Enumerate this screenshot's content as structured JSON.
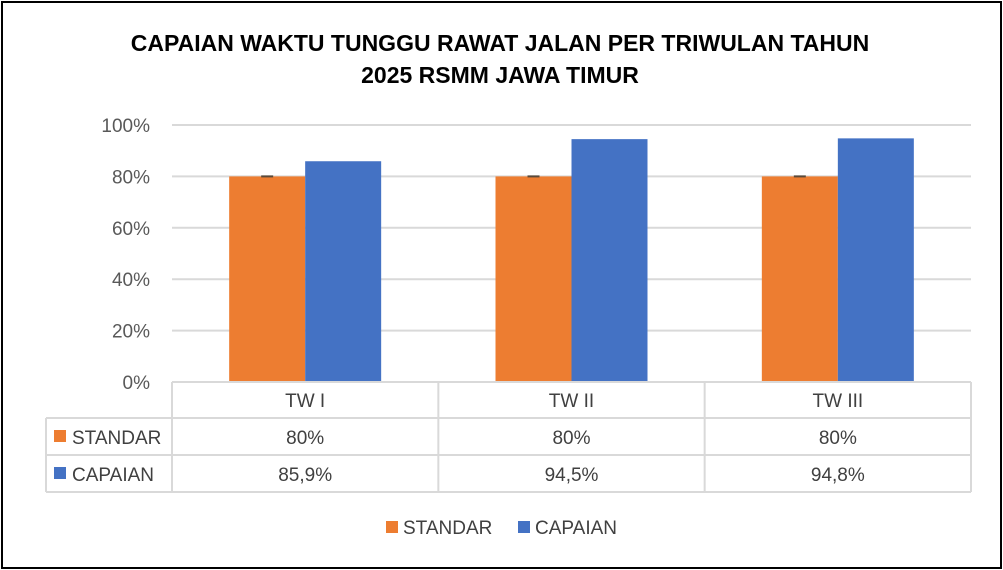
{
  "chart_data": {
    "type": "bar",
    "title": "CAPAIAN WAKTU TUNGGU RAWAT JALAN PER TRIWULAN TAHUN 2025 RSMM JAWA TIMUR",
    "title_lines": [
      "CAPAIAN WAKTU TUNGGU RAWAT JALAN PER TRIWULAN TAHUN",
      "2025 RSMM JAWA TIMUR"
    ],
    "categories": [
      "TW I",
      "TW II",
      "TW III"
    ],
    "series": [
      {
        "name": "STANDAR",
        "color": "#ED7D31",
        "values": [
          80,
          80,
          80
        ],
        "labels": [
          "80%",
          "80%",
          "80%"
        ]
      },
      {
        "name": "CAPAIAN",
        "color": "#4472C4",
        "values": [
          85.9,
          94.5,
          94.8
        ],
        "labels": [
          "85,9%",
          "94,5%",
          "94,8%"
        ]
      }
    ],
    "ylim": [
      0,
      100
    ],
    "yticks": [
      "0%",
      "20%",
      "40%",
      "60%",
      "80%",
      "100%"
    ],
    "grid": true,
    "data_table": true,
    "legend_placement": "bottom",
    "xlabel": "",
    "ylabel": ""
  }
}
